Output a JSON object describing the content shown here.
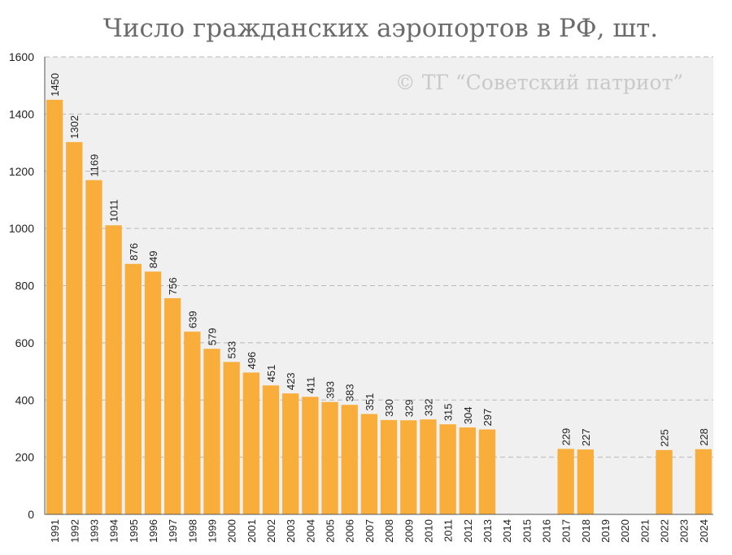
{
  "chart_data": {
    "type": "bar",
    "title": "Число гражданских аэропортов в РФ, шт.",
    "watermark": "© ТГ “Советский патриот”",
    "xlabel": "",
    "ylabel": "",
    "ylim": [
      0,
      1600
    ],
    "yticks": [
      0,
      200,
      400,
      600,
      800,
      1000,
      1200,
      1400,
      1600
    ],
    "grid": true,
    "categories": [
      "1991",
      "1992",
      "1993",
      "1994",
      "1995",
      "1996",
      "1997",
      "1998",
      "1999",
      "2000",
      "2001",
      "2002",
      "2003",
      "2004",
      "2005",
      "2006",
      "2007",
      "2008",
      "2009",
      "2010",
      "2011",
      "2012",
      "2013",
      "2014",
      "2015",
      "2016",
      "2017",
      "2018",
      "2019",
      "2020",
      "2021",
      "2022",
      "2023",
      "2024"
    ],
    "values": [
      1450,
      1302,
      1169,
      1011,
      876,
      849,
      756,
      639,
      579,
      533,
      496,
      451,
      423,
      411,
      393,
      383,
      351,
      330,
      329,
      332,
      315,
      304,
      297,
      null,
      null,
      null,
      229,
      227,
      null,
      null,
      null,
      225,
      null,
      228
    ]
  },
  "colors": {
    "bar": "#f9ae3b",
    "plot_background": "#f0f0f0",
    "grid": "#b8b8b8",
    "title": "#6b6b6b",
    "watermark": "#c9c9c9"
  }
}
